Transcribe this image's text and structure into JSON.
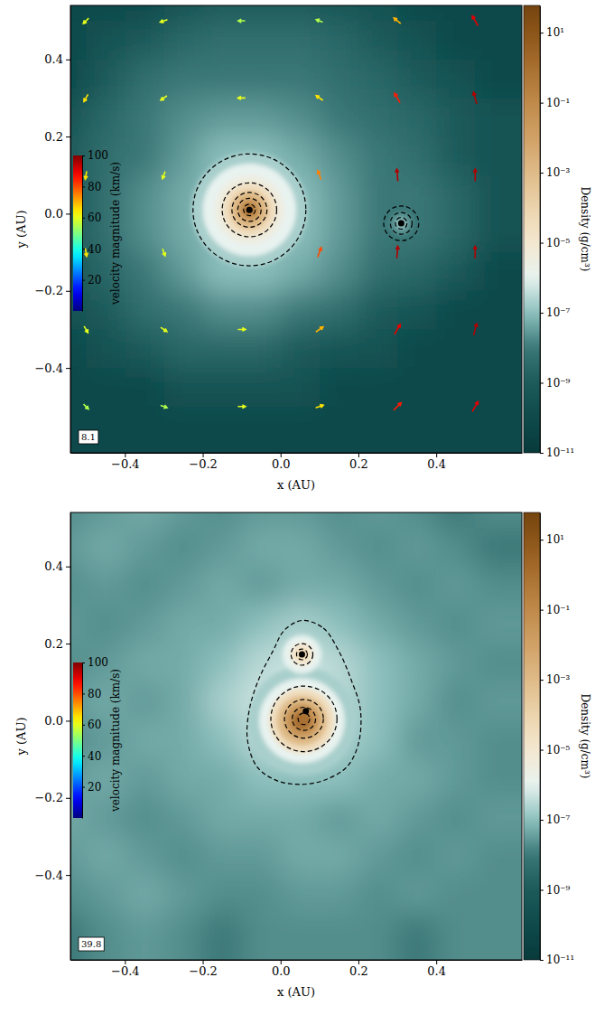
{
  "chart_data": [
    {
      "type": "heatmap",
      "annotation": "8.1",
      "xlabel": "x (AU)",
      "ylabel": "y (AU)",
      "xlim": [
        -0.54,
        0.62
      ],
      "ylim": [
        -0.62,
        0.54
      ],
      "xticks": [
        {
          "value": -0.4,
          "label": "−0.4"
        },
        {
          "value": -0.2,
          "label": "−0.2"
        },
        {
          "value": 0,
          "label": "0.0"
        },
        0.2,
        0.4
      ],
      "yticks": [
        {
          "value": -0.4,
          "label": "−0.4"
        },
        {
          "value": -0.2,
          "label": "−0.2"
        },
        {
          "value": 0,
          "label": "0.0"
        },
        0.2,
        0.4
      ],
      "density": {
        "x": [
          -0.55,
          -0.45,
          -0.35,
          -0.25,
          -0.15,
          -0.05,
          0.05,
          0.15,
          0.25,
          0.35,
          0.45,
          0.55
        ],
        "y": [
          0.55,
          0.45,
          0.35,
          0.25,
          0.15,
          0.05,
          -0.05,
          -0.15,
          -0.25,
          -0.35,
          -0.45,
          -0.55
        ],
        "values": [
          [
            1e-10,
            1e-10,
            1e-10,
            3e-10,
            1e-09,
            1e-09,
            1e-09,
            5e-10,
            3e-10,
            1e-10,
            1e-10,
            1e-10
          ],
          [
            1e-10,
            3e-10,
            1e-09,
            3e-09,
            5e-09,
            5e-09,
            5e-09,
            3e-09,
            1e-09,
            3e-10,
            1e-10,
            1e-10
          ],
          [
            1e-10,
            1e-09,
            5e-09,
            1e-08,
            1e-08,
            1e-08,
            1e-08,
            5e-09,
            3e-09,
            1e-09,
            3e-10,
            1e-10
          ],
          [
            3e-10,
            3e-09,
            1e-08,
            2e-08,
            3e-08,
            3e-08,
            2e-08,
            1e-08,
            5e-09,
            3e-09,
            1e-09,
            3e-10
          ],
          [
            1e-09,
            5e-09,
            1e-08,
            3e-08,
            1e-07,
            1e-07,
            5e-08,
            2e-08,
            1e-08,
            5e-09,
            1e-09,
            3e-10
          ],
          [
            1e-09,
            5e-09,
            2e-08,
            5e-08,
            1e-07,
            1e-07,
            1e-07,
            3e-08,
            1e-08,
            1e-08,
            3e-09,
            3e-10
          ],
          [
            1e-09,
            5e-09,
            2e-08,
            5e-08,
            1e-07,
            1e-07,
            1e-07,
            3e-08,
            1e-08,
            1e-08,
            3e-09,
            3e-10
          ],
          [
            5e-10,
            3e-09,
            1e-08,
            3e-08,
            1e-07,
            1e-07,
            5e-08,
            2e-08,
            5e-09,
            3e-09,
            1e-09,
            1e-10
          ],
          [
            3e-10,
            1e-09,
            5e-09,
            1e-08,
            2e-08,
            2e-08,
            1e-08,
            5e-09,
            1e-09,
            5e-10,
            1e-10,
            1e-10
          ],
          [
            1e-10,
            3e-10,
            1e-09,
            3e-09,
            3e-09,
            3e-09,
            1e-09,
            5e-10,
            3e-10,
            1e-10,
            1e-10,
            1e-10
          ],
          [
            1e-10,
            1e-10,
            1e-10,
            3e-10,
            3e-10,
            3e-10,
            3e-10,
            1e-10,
            1e-10,
            1e-10,
            1e-10,
            1e-10
          ],
          [
            1e-10,
            1e-10,
            1e-10,
            1e-10,
            1e-10,
            1e-10,
            1e-10,
            1e-10,
            1e-10,
            1e-10,
            1e-10,
            1e-10
          ]
        ]
      },
      "clumps": [
        {
          "x": -0.08,
          "y": 0.01,
          "r": [
            0.15,
            0.12,
            0.09,
            0.07,
            0.05,
            0.03,
            0.015
          ],
          "density": [
            2e-07,
            1e-06,
            3e-06,
            3e-05,
            0.001,
            0.03,
            1
          ]
        },
        {
          "x": 0.31,
          "y": -0.025,
          "r": [
            0.03,
            0.015
          ],
          "density": [
            2e-08,
            1e-07
          ]
        }
      ],
      "contours": [
        {
          "x": -0.08,
          "y": 0.01,
          "r": 0.145
        },
        {
          "x": -0.08,
          "y": 0.01,
          "r": 0.07
        },
        {
          "x": -0.08,
          "y": 0.01,
          "r": 0.045
        },
        {
          "x": -0.08,
          "y": 0.01,
          "r": 0.03
        },
        {
          "x": -0.08,
          "y": 0.01,
          "r": 0.015
        },
        {
          "x": 0.31,
          "y": -0.025,
          "r": 0.045
        },
        {
          "x": 0.31,
          "y": -0.025,
          "r": 0.028
        },
        {
          "x": 0.31,
          "y": -0.025,
          "r": 0.015
        }
      ],
      "stars": {
        "x": [
          -0.08,
          0.31
        ],
        "y": [
          0.01,
          -0.025
        ]
      },
      "vectors": {
        "x": [
          -0.5,
          -0.3,
          -0.1,
          0.1,
          0.3,
          0.5
        ],
        "y": [
          0.5,
          0.3,
          0.1,
          -0.1,
          -0.3,
          -0.5
        ],
        "speed": [
          [
            60,
            60,
            55,
            55,
            70,
            90
          ],
          [
            65,
            60,
            60,
            65,
            85,
            95
          ],
          [
            65,
            60,
            null,
            75,
            95,
            95
          ],
          [
            65,
            60,
            null,
            80,
            95,
            95
          ],
          [
            60,
            60,
            60,
            70,
            90,
            95
          ],
          [
            55,
            55,
            60,
            65,
            85,
            90
          ]
        ],
        "angle": [
          [
            225,
            200,
            180,
            160,
            140,
            120
          ],
          [
            240,
            215,
            180,
            145,
            120,
            105
          ],
          [
            260,
            250,
            null,
            110,
            95,
            90
          ],
          [
            280,
            290,
            null,
            70,
            85,
            90
          ],
          [
            300,
            325,
            0,
            35,
            60,
            75
          ],
          [
            315,
            340,
            0,
            20,
            45,
            60
          ]
        ]
      },
      "colorbar": {
        "label": "Density (g/cm³)",
        "log": true,
        "range": [
          1e-11,
          60
        ],
        "ticks": [
          {
            "value": 1e-11,
            "label": "10⁻¹¹"
          },
          {
            "value": 1e-09,
            "label": "10⁻⁹"
          },
          {
            "value": 1e-07,
            "label": "10⁻⁷"
          },
          {
            "value": 1e-05,
            "label": "10⁻⁵"
          },
          {
            "value": 0.001,
            "label": "10⁻³"
          },
          {
            "value": 0.1,
            "label": "10⁻¹"
          },
          {
            "value": 10,
            "label": "10¹"
          }
        ]
      },
      "velocity_colorbar": {
        "label": "velocity magnitude (km/s)",
        "range": [
          0,
          100
        ],
        "ticks": [
          20,
          40,
          60,
          80,
          100
        ]
      }
    },
    {
      "type": "heatmap",
      "annotation": "39.8",
      "xlabel": "x (AU)",
      "ylabel": "y (AU)",
      "xlim": [
        -0.54,
        0.62
      ],
      "ylim": [
        -0.62,
        0.54
      ],
      "xticks": [
        {
          "value": -0.4,
          "label": "−0.4"
        },
        {
          "value": -0.2,
          "label": "−0.2"
        },
        {
          "value": 0,
          "label": "0.0"
        },
        0.2,
        0.4
      ],
      "yticks": [
        {
          "value": -0.4,
          "label": "−0.4"
        },
        {
          "value": -0.2,
          "label": "−0.2"
        },
        {
          "value": 0,
          "label": "0.0"
        },
        0.2,
        0.4
      ],
      "density": {
        "x": [
          -0.55,
          -0.45,
          -0.35,
          -0.25,
          -0.15,
          -0.05,
          0.05,
          0.15,
          0.25,
          0.35,
          0.45,
          0.55
        ],
        "y": [
          0.55,
          0.45,
          0.35,
          0.25,
          0.15,
          0.05,
          -0.05,
          -0.15,
          -0.25,
          -0.35,
          -0.45,
          -0.55
        ],
        "values": [
          [
            2e-08,
            3e-08,
            5e-08,
            3e-08,
            2e-08,
            3e-08,
            3e-08,
            2e-08,
            3e-08,
            2e-08,
            1e-08,
            2e-08
          ],
          [
            3e-08,
            5e-08,
            3e-08,
            2e-08,
            3e-08,
            5e-08,
            5e-08,
            3e-08,
            2e-08,
            3e-08,
            2e-08,
            1e-08
          ],
          [
            2e-08,
            3e-08,
            2e-08,
            3e-08,
            5e-08,
            3e-08,
            5e-08,
            5e-08,
            3e-08,
            2e-08,
            3e-08,
            2e-08
          ],
          [
            3e-08,
            2e-08,
            3e-08,
            5e-08,
            5e-08,
            1e-07,
            2e-07,
            1e-07,
            5e-08,
            3e-08,
            2e-08,
            3e-08
          ],
          [
            2e-08,
            3e-08,
            5e-08,
            5e-08,
            1e-07,
            3e-07,
            5e-07,
            3e-07,
            1e-07,
            5e-08,
            3e-08,
            2e-08
          ],
          [
            3e-08,
            5e-08,
            3e-08,
            5e-08,
            2e-07,
            5e-07,
            5e-07,
            3e-07,
            1e-07,
            5e-08,
            2e-08,
            3e-08
          ],
          [
            2e-08,
            3e-08,
            5e-08,
            5e-08,
            1e-07,
            3e-07,
            5e-07,
            2e-07,
            1e-07,
            3e-08,
            3e-08,
            2e-08
          ],
          [
            3e-08,
            5e-08,
            3e-08,
            5e-08,
            5e-08,
            1e-07,
            1e-07,
            1e-07,
            5e-08,
            5e-08,
            3e-08,
            2e-08
          ],
          [
            5e-08,
            3e-08,
            2e-08,
            3e-08,
            5e-08,
            5e-08,
            5e-08,
            3e-08,
            5e-08,
            3e-08,
            2e-08,
            3e-08
          ],
          [
            3e-08,
            5e-08,
            3e-08,
            2e-08,
            3e-08,
            3e-08,
            5e-08,
            5e-08,
            3e-08,
            2e-08,
            3e-08,
            2e-08
          ],
          [
            2e-08,
            3e-08,
            5e-08,
            3e-08,
            2e-08,
            2e-08,
            3e-08,
            3e-08,
            2e-08,
            3e-08,
            2e-08,
            2e-08
          ],
          [
            1e-08,
            2e-08,
            3e-08,
            2e-08,
            1e-08,
            2e-08,
            2e-08,
            2e-08,
            2e-08,
            1e-08,
            2e-08,
            2e-08
          ]
        ]
      },
      "clumps": [
        {
          "x": 0.055,
          "y": 0.0,
          "r": [
            0.14,
            0.11,
            0.085,
            0.065,
            0.045,
            0.025
          ],
          "density": [
            2e-07,
            1e-06,
            3e-05,
            0.001,
            0.03,
            1
          ]
        },
        {
          "x": 0.055,
          "y": 0.172,
          "r": [
            0.05,
            0.03,
            0.015
          ],
          "density": [
            1e-06,
            1e-05,
            0.0001
          ]
        }
      ],
      "contours": [
        {
          "x": [
            0.055,
            0.11,
            0.15,
            0.18,
            0.205,
            0.2,
            0.17,
            0.11,
            0.05,
            -0.01,
            -0.06,
            -0.085,
            -0.08,
            -0.055,
            -0.02,
            0.01
          ],
          "y": [
            0.26,
            0.24,
            0.18,
            0.11,
            0.03,
            -0.06,
            -0.12,
            -0.155,
            -0.165,
            -0.155,
            -0.12,
            -0.05,
            0.03,
            0.11,
            0.18,
            0.235
          ]
        },
        {
          "x": 0.06,
          "y": 0.005,
          "r": 0.085
        },
        {
          "x": 0.06,
          "y": 0.005,
          "r": 0.05
        },
        {
          "x": 0.06,
          "y": 0.005,
          "r": 0.03
        },
        {
          "x": 0.06,
          "y": 0.005,
          "r": 0.015
        },
        {
          "x": 0.055,
          "y": 0.172,
          "r": 0.028
        },
        {
          "x": 0.055,
          "y": 0.172,
          "r": 0.014
        }
      ],
      "stars": {
        "x": [
          0.065,
          0.055
        ],
        "y": [
          0.025,
          0.172
        ]
      },
      "colorbar": {
        "label": "Density (g/cm³)",
        "log": true,
        "range": [
          1e-11,
          60
        ],
        "ticks": [
          {
            "value": 1e-11,
            "label": "10⁻¹¹"
          },
          {
            "value": 1e-09,
            "label": "10⁻⁹"
          },
          {
            "value": 1e-07,
            "label": "10⁻⁷"
          },
          {
            "value": 1e-05,
            "label": "10⁻⁵"
          },
          {
            "value": 0.001,
            "label": "10⁻³"
          },
          {
            "value": 0.1,
            "label": "10⁻¹"
          },
          {
            "value": 10,
            "label": "10¹"
          }
        ]
      },
      "velocity_colorbar": {
        "label": "velocity magnitude (km/s)",
        "range": [
          0,
          100
        ],
        "ticks": [
          20,
          40,
          60,
          80,
          100
        ]
      }
    }
  ]
}
